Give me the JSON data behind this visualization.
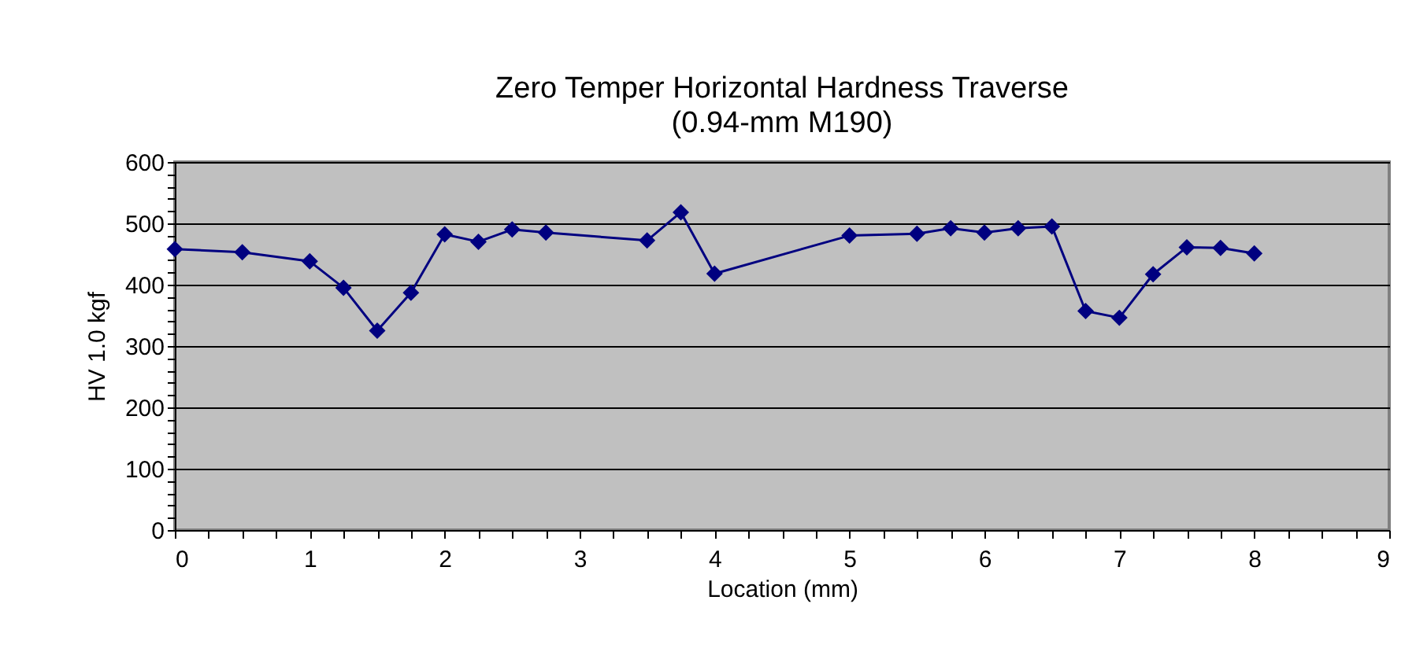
{
  "chart_data": {
    "type": "line",
    "title": "Zero Temper Horizontal Hardness Traverse",
    "subtitle": "(0.94-mm M190)",
    "xlabel": "Location (mm)",
    "ylabel": "HV 1.0 kgf",
    "x": [
      0,
      0.5,
      1,
      1.25,
      1.5,
      1.75,
      2,
      2.25,
      2.5,
      2.75,
      3.5,
      3.75,
      4,
      5,
      5.5,
      5.75,
      6,
      6.25,
      6.5,
      6.75,
      7,
      7.25,
      7.5,
      7.75,
      8
    ],
    "series": [
      {
        "color": "#000080",
        "values": [
          458,
          453,
          438,
          395,
          325,
          387,
          482,
          470,
          490,
          485,
          472,
          518,
          418,
          480,
          483,
          492,
          485,
          492,
          495,
          357,
          346,
          417,
          461,
          460,
          451
        ]
      }
    ],
    "xlim": [
      0,
      9
    ],
    "ylim": [
      0,
      600
    ],
    "xticks": [
      0,
      {
        "value": 0.25,
        "label": null
      },
      {
        "value": 0.5,
        "label": null
      },
      {
        "value": 0.75,
        "label": null
      },
      1,
      {
        "value": 1.25,
        "label": null
      },
      {
        "value": 1.5,
        "label": null
      },
      {
        "value": 1.75,
        "label": null
      },
      2,
      {
        "value": 2.25,
        "label": null
      },
      {
        "value": 2.5,
        "label": null
      },
      {
        "value": 2.75,
        "label": null
      },
      3,
      {
        "value": 3.25,
        "label": null
      },
      {
        "value": 3.5,
        "label": null
      },
      {
        "value": 3.75,
        "label": null
      },
      4,
      {
        "value": 4.25,
        "label": null
      },
      {
        "value": 4.5,
        "label": null
      },
      {
        "value": 4.75,
        "label": null
      },
      5,
      {
        "value": 5.25,
        "label": null
      },
      {
        "value": 5.5,
        "label": null
      },
      {
        "value": 5.75,
        "label": null
      },
      6,
      {
        "value": 6.25,
        "label": null
      },
      {
        "value": 6.5,
        "label": null
      },
      {
        "value": 6.75,
        "label": null
      },
      7,
      {
        "value": 7.25,
        "label": null
      },
      {
        "value": 7.5,
        "label": null
      },
      {
        "value": 7.75,
        "label": null
      },
      8,
      {
        "value": 8.25,
        "label": null
      },
      {
        "value": 8.5,
        "label": null
      },
      {
        "value": 8.75,
        "label": null
      },
      9
    ],
    "yticks": [
      0,
      {
        "value": 20,
        "label": null
      },
      {
        "value": 40,
        "label": null
      },
      {
        "value": 60,
        "label": null
      },
      {
        "value": 80,
        "label": null
      },
      100,
      {
        "value": 120,
        "label": null
      },
      {
        "value": 140,
        "label": null
      },
      {
        "value": 160,
        "label": null
      },
      {
        "value": 180,
        "label": null
      },
      200,
      {
        "value": 220,
        "label": null
      },
      {
        "value": 240,
        "label": null
      },
      {
        "value": 260,
        "label": null
      },
      {
        "value": 280,
        "label": null
      },
      300,
      {
        "value": 320,
        "label": null
      },
      {
        "value": 340,
        "label": null
      },
      {
        "value": 360,
        "label": null
      },
      {
        "value": 380,
        "label": null
      },
      400,
      {
        "value": 420,
        "label": null
      },
      {
        "value": 440,
        "label": null
      },
      {
        "value": 460,
        "label": null
      },
      {
        "value": 480,
        "label": null
      },
      500,
      {
        "value": 520,
        "label": null
      },
      {
        "value": 540,
        "label": null
      },
      {
        "value": 560,
        "label": null
      },
      {
        "value": 580,
        "label": null
      },
      600
    ],
    "grid": "y",
    "marker": "diamond",
    "line_style": "solid",
    "legend": false
  }
}
